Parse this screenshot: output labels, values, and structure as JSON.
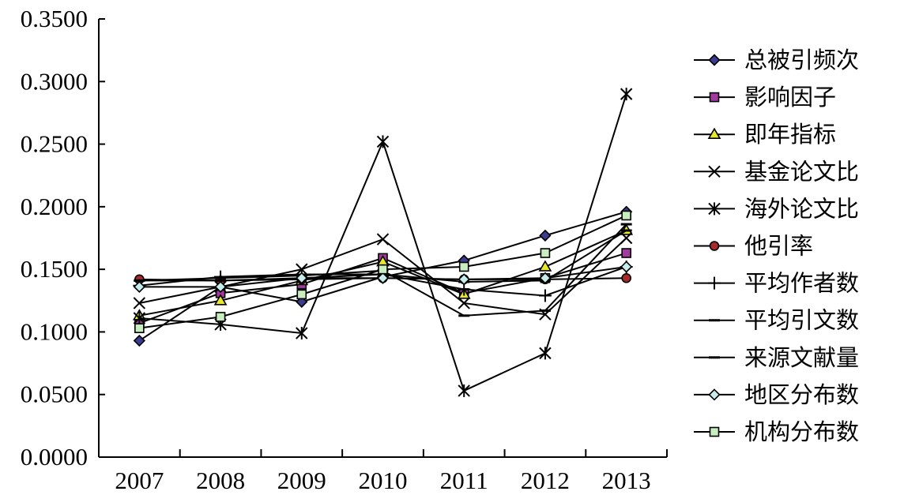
{
  "chart_data": {
    "type": "line",
    "title": "",
    "xlabel": "",
    "ylabel": "",
    "x": [
      "2007",
      "2008",
      "2009",
      "2010",
      "2011",
      "2012",
      "2013"
    ],
    "y_ticks": [
      "0.0000",
      "0.0500",
      "0.1000",
      "0.1500",
      "0.2000",
      "0.2500",
      "0.3000",
      "0.3500"
    ],
    "ylim": [
      0,
      0.35
    ],
    "grid": false,
    "legend_position": "right",
    "series": [
      {
        "name": "总被引频次",
        "marker": "diamond",
        "fill": "#3b3b8f",
        "values": [
          0.093,
          0.136,
          0.124,
          0.144,
          0.157,
          0.177,
          0.196
        ]
      },
      {
        "name": "影响因子",
        "marker": "square",
        "fill": "#a23ba0",
        "values": [
          0.107,
          0.131,
          0.138,
          0.159,
          0.131,
          0.143,
          0.163
        ]
      },
      {
        "name": "即年指标",
        "marker": "triangle",
        "fill": "#e8e82a",
        "values": [
          0.113,
          0.125,
          0.141,
          0.156,
          0.13,
          0.152,
          0.181
        ]
      },
      {
        "name": "基金论文比",
        "marker": "x",
        "fill": "none",
        "values": [
          0.123,
          0.136,
          0.15,
          0.174,
          0.123,
          0.114,
          0.175
        ]
      },
      {
        "name": "海外论文比",
        "marker": "star",
        "fill": "none",
        "values": [
          0.111,
          0.106,
          0.099,
          0.252,
          0.053,
          0.083,
          0.29
        ]
      },
      {
        "name": "他引率",
        "marker": "circle",
        "fill": "#a52a2a",
        "values": [
          0.142,
          0.141,
          0.142,
          0.143,
          0.142,
          0.142,
          0.143
        ]
      },
      {
        "name": "平均作者数",
        "marker": "plus",
        "fill": "none",
        "values": [
          0.137,
          0.144,
          0.146,
          0.146,
          0.134,
          0.129,
          0.152
        ]
      },
      {
        "name": "平均引文数",
        "marker": "dash",
        "fill": "none",
        "values": [
          0.141,
          0.143,
          0.145,
          0.149,
          0.113,
          0.117,
          0.186
        ]
      },
      {
        "name": "来源文献量",
        "marker": "dash",
        "fill": "none",
        "values": [
          0.141,
          0.141,
          0.143,
          0.146,
          0.14,
          0.141,
          0.181
        ]
      },
      {
        "name": "地区分布数",
        "marker": "diamond",
        "fill": "#c6ecec",
        "values": [
          0.136,
          0.136,
          0.143,
          0.143,
          0.142,
          0.143,
          0.152
        ]
      },
      {
        "name": "机构分布数",
        "marker": "square",
        "fill": "#c8eec0",
        "values": [
          0.103,
          0.112,
          0.13,
          0.15,
          0.152,
          0.163,
          0.193
        ]
      }
    ]
  }
}
